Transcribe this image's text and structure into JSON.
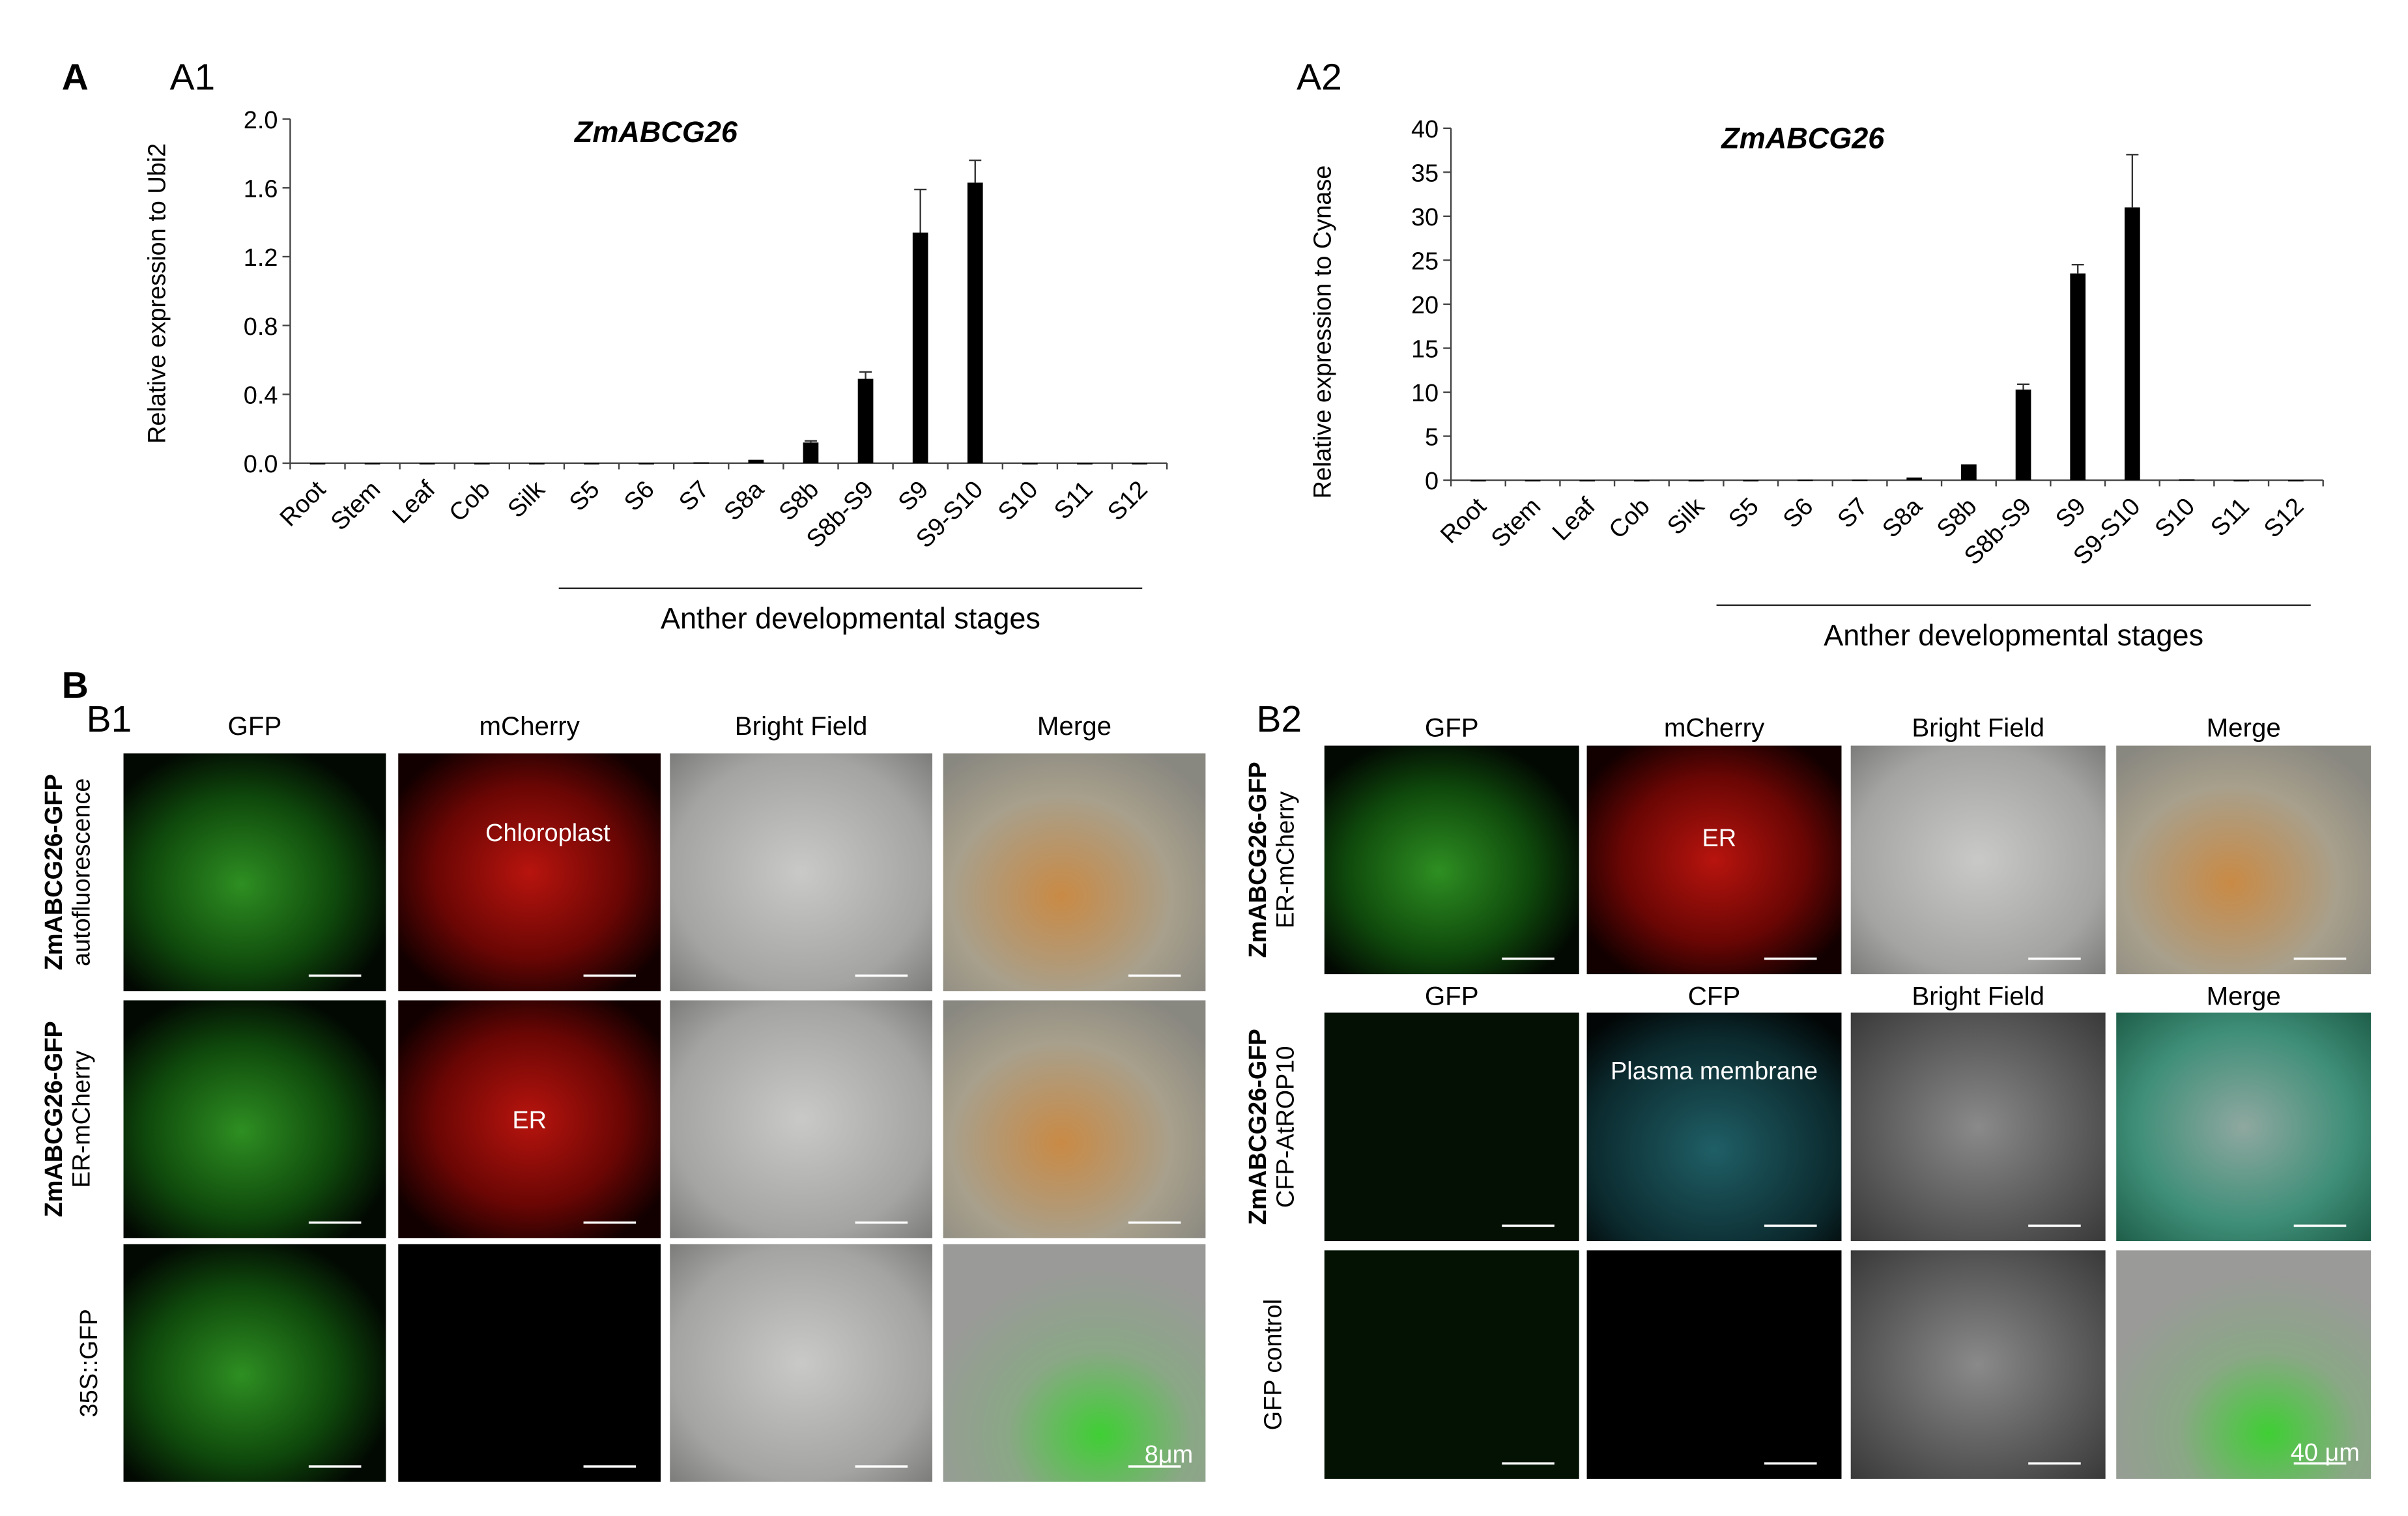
{
  "chart_data": [
    {
      "type": "bar",
      "panel_label": "A1",
      "title": "ZmABCG26",
      "y_label": "Relative expression to Ubi2",
      "categories": [
        "Root",
        "Stem",
        "Leaf",
        "Cob",
        "Silk",
        "S5",
        "S6",
        "S7",
        "S8a",
        "S8b",
        "S8b-S9",
        "S9",
        "S9-S10",
        "S10",
        "S11",
        "S12"
      ],
      "values": [
        0,
        0,
        0,
        0,
        0,
        0,
        0,
        0.005,
        0.02,
        0.12,
        0.49,
        1.34,
        1.63,
        0,
        0,
        0
      ],
      "errors": [
        null,
        null,
        null,
        null,
        null,
        null,
        null,
        null,
        null,
        0.01,
        0.04,
        0.25,
        0.13,
        null,
        null,
        null
      ],
      "color": "#000000",
      "ylim": [
        0,
        2
      ],
      "yticks": [
        {
          "value": 0,
          "label": "0.0"
        },
        {
          "value": 0.4,
          "label": "0.4"
        },
        {
          "value": 0.8,
          "label": "0.8"
        },
        {
          "value": 1.2,
          "label": "1.2"
        },
        {
          "value": 1.6,
          "label": "1.6"
        },
        {
          "value": 2,
          "label": "2.0"
        }
      ],
      "group_label": "Anther developmental stages"
    },
    {
      "type": "bar",
      "panel_label": "A2",
      "title": "ZmABCG26",
      "y_label": "Relative expression to Cynase",
      "categories": [
        "Root",
        "Stem",
        "Leaf",
        "Cob",
        "Silk",
        "S5",
        "S6",
        "S7",
        "S8a",
        "S8b",
        "S8b-S9",
        "S9",
        "S9-S10",
        "S10",
        "S11",
        "S12"
      ],
      "values": [
        0,
        0,
        0,
        0,
        0,
        0,
        0.05,
        0.05,
        0.3,
        1.8,
        10.3,
        23.5,
        31,
        0.1,
        0,
        0
      ],
      "errors": [
        null,
        null,
        null,
        null,
        null,
        null,
        null,
        null,
        null,
        null,
        0.6,
        1.0,
        6,
        null,
        null,
        null
      ],
      "color": "#000000",
      "ylim": [
        0,
        40
      ],
      "yticks": [
        0,
        5,
        10,
        15,
        20,
        25,
        30,
        35,
        40
      ],
      "group_label": "Anther developmental stages"
    }
  ],
  "section_a": "A",
  "section_b": "B",
  "micrographs": [
    {
      "panel_label": "B1",
      "rows": [
        {
          "headers": [
            "GFP",
            "mCherry",
            "Bright Field",
            "Merge"
          ],
          "label": [
            "ZmABCG26-GFP",
            "autofluorescence"
          ],
          "overlays": [
            null,
            "Chloroplast",
            null,
            null
          ]
        },
        {
          "label": [
            "ZmABCG26-GFP",
            "ER-mCherry"
          ],
          "overlays": [
            null,
            "ER",
            null,
            null
          ]
        },
        {
          "label": [
            "35S::GFP"
          ],
          "overlays": [
            null,
            null,
            null,
            "8μm"
          ]
        }
      ]
    },
    {
      "panel_label": "B2",
      "rows": [
        {
          "headers": [
            "GFP",
            "mCherry",
            "Bright Field",
            "Merge"
          ],
          "label": [
            "ZmABCG26-GFP",
            "ER-mCherry"
          ],
          "overlays": [
            null,
            "ER",
            null,
            null
          ]
        },
        {
          "headers": [
            "GFP",
            "CFP",
            "Bright Field",
            "Merge"
          ],
          "label": [
            "ZmABCG26-GFP",
            "CFP-AtROP10"
          ],
          "overlays": [
            null,
            "Plasma membrane",
            null,
            null
          ]
        },
        {
          "label": [
            "GFP control"
          ],
          "overlays": [
            null,
            null,
            null,
            "40 μm"
          ]
        }
      ]
    }
  ]
}
